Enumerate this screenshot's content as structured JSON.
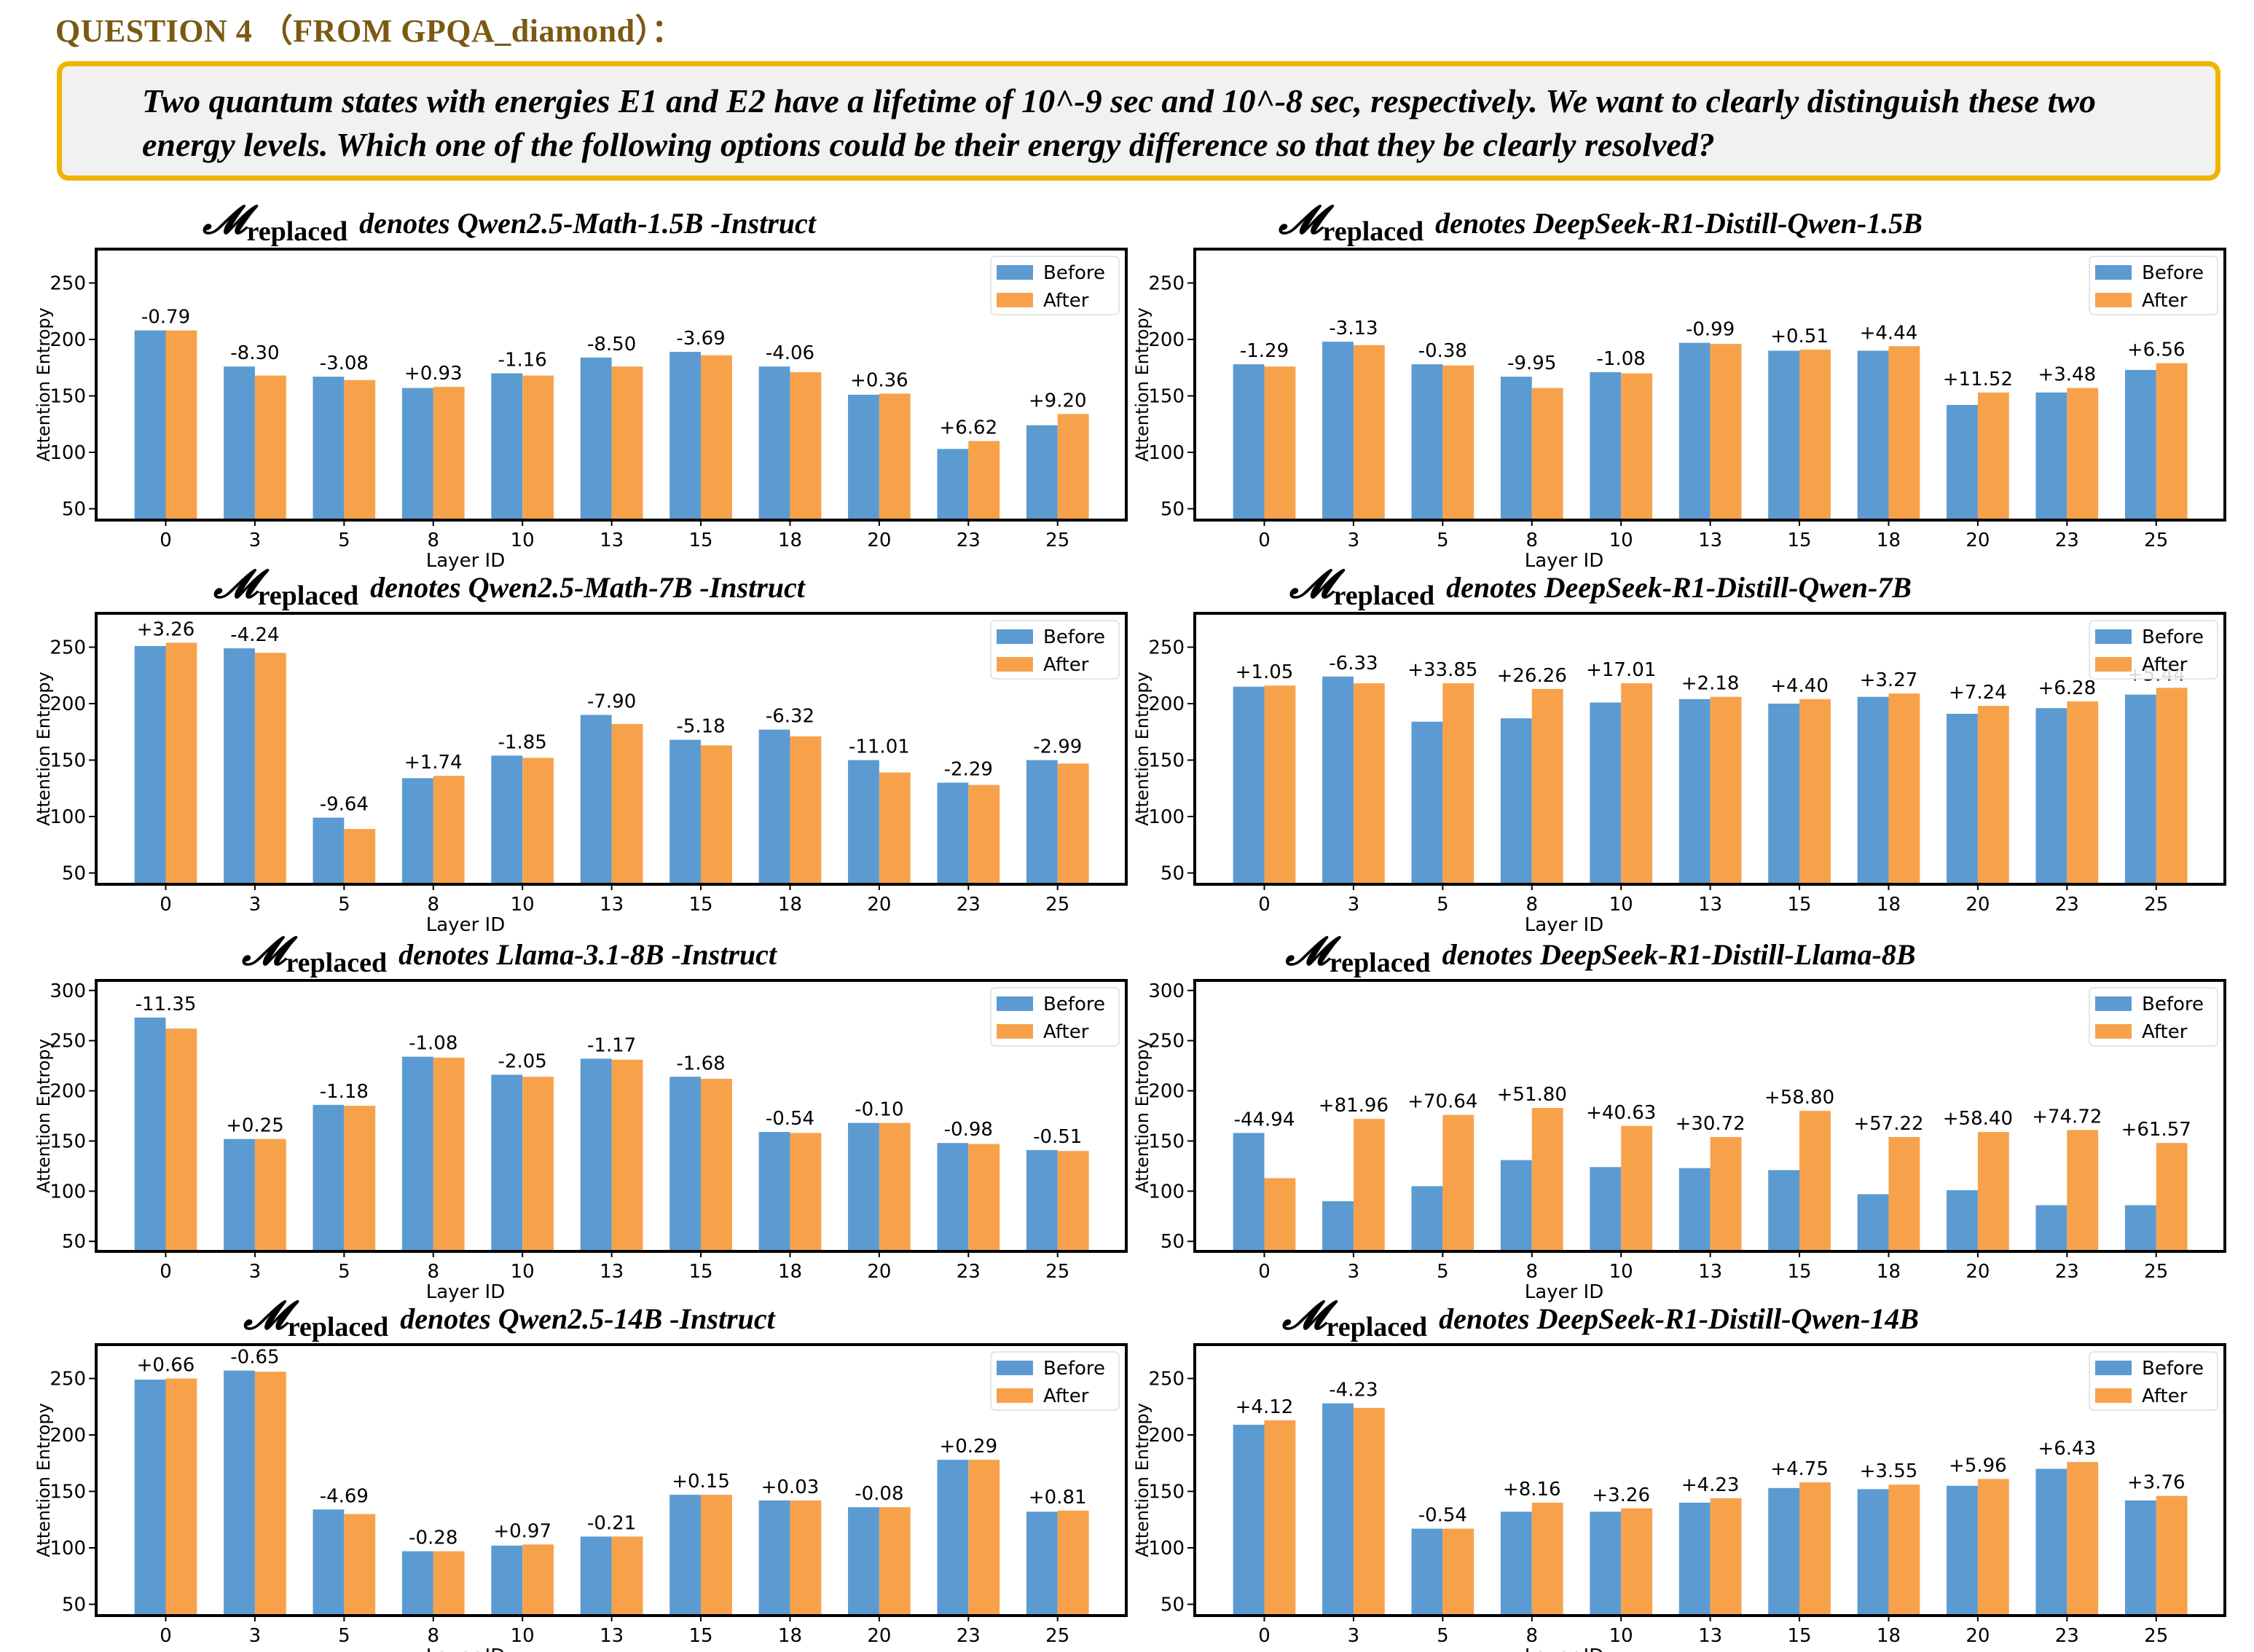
{
  "header": {
    "title": "QUESTION 4 （FROM GPQA_diamond）："
  },
  "question": {
    "text": "Two quantum states with energies E1 and E2 have a lifetime of 10^-9 sec and 10^-8 sec, respectively. We want to clearly distinguish these two energy levels. Which one of the following options could be their energy difference so that they be clearly resolved?"
  },
  "colors": {
    "before": "#5b9bd1",
    "after": "#f7a24b",
    "box_border": "#f0b400",
    "box_fill": "#f1f1f1",
    "header": "#7a5a13"
  },
  "chart_data": [
    {
      "type": "bar",
      "title_symbol": "𝓜",
      "title_subscript": "replaced",
      "title_text": "denotes Qwen2.5-Math-1.5B -Instruct",
      "xlabel": "Layer ID",
      "ylabel": "Attention Entropy",
      "categories": [
        "0",
        "3",
        "5",
        "8",
        "10",
        "13",
        "15",
        "18",
        "20",
        "23",
        "25"
      ],
      "ylim": [
        40,
        280
      ],
      "yticks": [
        50,
        100,
        150,
        200,
        250
      ],
      "legend": "top-right",
      "series": [
        {
          "name": "Before",
          "values": [
            208,
            176,
            167,
            157,
            170,
            184,
            189,
            176,
            151,
            103,
            124
          ]
        },
        {
          "name": "After",
          "values": [
            208,
            168,
            164,
            158,
            168,
            176,
            186,
            171,
            152,
            110,
            134
          ]
        }
      ],
      "labels": [
        "-0.79",
        "-8.30",
        "-3.08",
        "+0.93",
        "-1.16",
        "-8.50",
        "-3.69",
        "-4.06",
        "+0.36",
        "+6.62",
        "+9.20"
      ]
    },
    {
      "type": "bar",
      "title_symbol": "𝓜",
      "title_subscript": "replaced",
      "title_text": "denotes DeepSeek-R1-Distill-Qwen-1.5B",
      "xlabel": "Layer ID",
      "ylabel": "Attention Entropy",
      "categories": [
        "0",
        "3",
        "5",
        "8",
        "10",
        "13",
        "15",
        "18",
        "20",
        "23",
        "25"
      ],
      "ylim": [
        40,
        280
      ],
      "yticks": [
        50,
        100,
        150,
        200,
        250
      ],
      "legend": "top-right",
      "series": [
        {
          "name": "Before",
          "values": [
            178,
            198,
            178,
            167,
            171,
            197,
            190,
            190,
            142,
            153,
            173
          ]
        },
        {
          "name": "After",
          "values": [
            176,
            195,
            177,
            157,
            170,
            196,
            191,
            194,
            153,
            157,
            179
          ]
        }
      ],
      "labels": [
        "-1.29",
        "-3.13",
        "-0.38",
        "-9.95",
        "-1.08",
        "-0.99",
        "+0.51",
        "+4.44",
        "+11.52",
        "+3.48",
        "+6.56"
      ]
    },
    {
      "type": "bar",
      "title_symbol": "𝓜",
      "title_subscript": "replaced",
      "title_text": "denotes Qwen2.5-Math-7B -Instruct",
      "xlabel": "Layer ID",
      "ylabel": "Attention Entropy",
      "categories": [
        "0",
        "3",
        "5",
        "8",
        "10",
        "13",
        "15",
        "18",
        "20",
        "23",
        "25"
      ],
      "ylim": [
        40,
        280
      ],
      "yticks": [
        50,
        100,
        150,
        200,
        250
      ],
      "legend": "top-right",
      "series": [
        {
          "name": "Before",
          "values": [
            251,
            249,
            99,
            134,
            154,
            190,
            168,
            177,
            150,
            130,
            150
          ]
        },
        {
          "name": "After",
          "values": [
            254,
            245,
            89,
            136,
            152,
            182,
            163,
            171,
            139,
            128,
            147
          ]
        }
      ],
      "labels": [
        "+3.26",
        "-4.24",
        "-9.64",
        "+1.74",
        "-1.85",
        "-7.90",
        "-5.18",
        "-6.32",
        "-11.01",
        "-2.29",
        "-2.99"
      ]
    },
    {
      "type": "bar",
      "title_symbol": "𝓜",
      "title_subscript": "replaced",
      "title_text": "denotes DeepSeek-R1-Distill-Qwen-7B",
      "xlabel": "Layer ID",
      "ylabel": "Attention Entropy",
      "categories": [
        "0",
        "3",
        "5",
        "8",
        "10",
        "13",
        "15",
        "18",
        "20",
        "23",
        "25"
      ],
      "ylim": [
        40,
        280
      ],
      "yticks": [
        50,
        100,
        150,
        200,
        250
      ],
      "legend": "top-right",
      "series": [
        {
          "name": "Before",
          "values": [
            215,
            224,
            184,
            187,
            201,
            204,
            200,
            206,
            191,
            196,
            208
          ]
        },
        {
          "name": "After",
          "values": [
            216,
            218,
            218,
            213,
            218,
            206,
            204,
            209,
            198,
            202,
            214
          ]
        }
      ],
      "labels": [
        "+1.05",
        "-6.33",
        "+33.85",
        "+26.26",
        "+17.01",
        "+2.18",
        "+4.40",
        "+3.27",
        "+7.24",
        "+6.28",
        "+5.44"
      ]
    },
    {
      "type": "bar",
      "title_symbol": "𝓜",
      "title_subscript": "replaced",
      "title_text": "denotes Llama-3.1-8B -Instruct",
      "xlabel": "Layer ID",
      "ylabel": "Attention Entropy",
      "categories": [
        "0",
        "3",
        "5",
        "8",
        "10",
        "13",
        "15",
        "18",
        "20",
        "23",
        "25"
      ],
      "ylim": [
        40,
        310
      ],
      "yticks": [
        50,
        100,
        150,
        200,
        250,
        300
      ],
      "legend": "top-right",
      "series": [
        {
          "name": "Before",
          "values": [
            273,
            152,
            186,
            234,
            216,
            232,
            214,
            159,
            168,
            148,
            141
          ]
        },
        {
          "name": "After",
          "values": [
            262,
            152,
            185,
            233,
            214,
            231,
            212,
            158,
            168,
            147,
            140
          ]
        }
      ],
      "labels": [
        "-11.35",
        "+0.25",
        "-1.18",
        "-1.08",
        "-2.05",
        "-1.17",
        "-1.68",
        "-0.54",
        "-0.10",
        "-0.98",
        "-0.51"
      ]
    },
    {
      "type": "bar",
      "title_symbol": "𝓜",
      "title_subscript": "replaced",
      "title_text": "denotes DeepSeek-R1-Distill-Llama-8B",
      "xlabel": "Layer ID",
      "ylabel": "Attention Entropy",
      "categories": [
        "0",
        "3",
        "5",
        "8",
        "10",
        "13",
        "15",
        "18",
        "20",
        "23",
        "25"
      ],
      "ylim": [
        40,
        310
      ],
      "yticks": [
        50,
        100,
        150,
        200,
        250,
        300
      ],
      "legend": "top-right",
      "series": [
        {
          "name": "Before",
          "values": [
            158,
            90,
            105,
            131,
            124,
            123,
            121,
            97,
            101,
            86,
            86
          ]
        },
        {
          "name": "After",
          "values": [
            113,
            172,
            176,
            183,
            165,
            154,
            180,
            154,
            159,
            161,
            148
          ]
        }
      ],
      "labels": [
        "-44.94",
        "+81.96",
        "+70.64",
        "+51.80",
        "+40.63",
        "+30.72",
        "+58.80",
        "+57.22",
        "+58.40",
        "+74.72",
        "+61.57"
      ]
    },
    {
      "type": "bar",
      "title_symbol": "𝓜",
      "title_subscript": "replaced",
      "title_text": "denotes Qwen2.5-14B -Instruct",
      "xlabel": "Layer ID",
      "ylabel": "Attention Entropy",
      "categories": [
        "0",
        "3",
        "5",
        "8",
        "10",
        "13",
        "15",
        "18",
        "20",
        "23",
        "25"
      ],
      "ylim": [
        40,
        280
      ],
      "yticks": [
        50,
        100,
        150,
        200,
        250
      ],
      "legend": "top-right",
      "series": [
        {
          "name": "Before",
          "values": [
            249,
            257,
            134,
            97,
            102,
            110,
            147,
            142,
            136,
            178,
            132
          ]
        },
        {
          "name": "After",
          "values": [
            250,
            256,
            130,
            97,
            103,
            110,
            147,
            142,
            136,
            178,
            133
          ]
        }
      ],
      "labels": [
        "+0.66",
        "-0.65",
        "-4.69",
        "-0.28",
        "+0.97",
        "-0.21",
        "+0.15",
        "+0.03",
        "-0.08",
        "+0.29",
        "+0.81"
      ]
    },
    {
      "type": "bar",
      "title_symbol": "𝓜",
      "title_subscript": "replaced",
      "title_text": "denotes DeepSeek-R1-Distill-Qwen-14B",
      "xlabel": "Layer ID",
      "ylabel": "Attention Entropy",
      "categories": [
        "0",
        "3",
        "5",
        "8",
        "10",
        "13",
        "15",
        "18",
        "20",
        "23",
        "25"
      ],
      "ylim": [
        40,
        280
      ],
      "yticks": [
        50,
        100,
        150,
        200,
        250
      ],
      "legend": "top-right",
      "series": [
        {
          "name": "Before",
          "values": [
            209,
            228,
            117,
            132,
            132,
            140,
            153,
            152,
            155,
            170,
            142
          ]
        },
        {
          "name": "After",
          "values": [
            213,
            224,
            117,
            140,
            135,
            144,
            158,
            156,
            161,
            176,
            146
          ]
        }
      ],
      "labels": [
        "+4.12",
        "-4.23",
        "-0.54",
        "+8.16",
        "+3.26",
        "+4.23",
        "+4.75",
        "+3.55",
        "+5.96",
        "+6.43",
        "+3.76"
      ]
    }
  ]
}
